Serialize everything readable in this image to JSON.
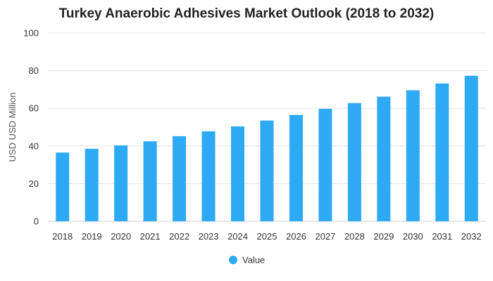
{
  "chart_data": {
    "type": "bar",
    "title": "Turkey Anaerobic Adhesives Market Outlook (2018 to 2032)",
    "xlabel": "",
    "ylabel": "USD USD Million",
    "categories": [
      "2018",
      "2019",
      "2020",
      "2021",
      "2022",
      "2023",
      "2024",
      "2025",
      "2026",
      "2027",
      "2028",
      "2029",
      "2030",
      "2031",
      "2032"
    ],
    "series": [
      {
        "name": "Value",
        "color": "#2eaaf5",
        "values": [
          36.5,
          38.5,
          40.3,
          42.5,
          45.2,
          47.8,
          50.4,
          53.5,
          56.5,
          59.7,
          62.8,
          66.2,
          69.6,
          73.2,
          77.3
        ]
      }
    ],
    "ylim": [
      0,
      100
    ],
    "yticks": [
      0,
      20,
      40,
      60,
      80,
      100
    ],
    "grid": true,
    "legend_position": "bottom-center"
  }
}
